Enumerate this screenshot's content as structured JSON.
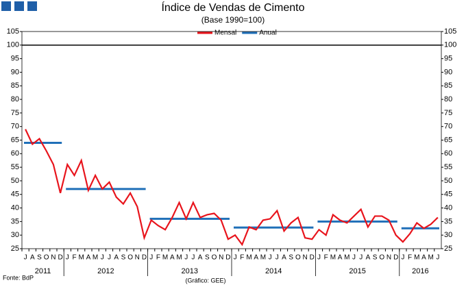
{
  "chart_data": {
    "type": "line",
    "title": "Índice de Vendas de Cimento",
    "subtitle": "(Base 1990=100)",
    "source": "Fonte: BdP",
    "credit": "(Gráfico: GEE)",
    "year_groups": [
      {
        "label": "2011",
        "months": [
          "J",
          "A",
          "S",
          "O",
          "N",
          "D"
        ]
      },
      {
        "label": "2012",
        "months": [
          "J",
          "F",
          "M",
          "A",
          "M",
          "J",
          "J",
          "A",
          "S",
          "O",
          "N",
          "D"
        ]
      },
      {
        "label": "2013",
        "months": [
          "J",
          "F",
          "M",
          "A",
          "M",
          "J",
          "J",
          "A",
          "S",
          "O",
          "N",
          "D"
        ]
      },
      {
        "label": "2014",
        "months": [
          "J",
          "F",
          "M",
          "A",
          "M",
          "J",
          "J",
          "A",
          "S",
          "O",
          "N",
          "D"
        ]
      },
      {
        "label": "2015",
        "months": [
          "J",
          "F",
          "M",
          "A",
          "M",
          "J",
          "J",
          "A",
          "S",
          "O",
          "N",
          "D"
        ]
      },
      {
        "label": "2016",
        "months": [
          "J",
          "F",
          "M",
          "A",
          "M",
          "J"
        ]
      }
    ],
    "series": [
      {
        "name": "Mensal",
        "color": "#e8141c",
        "values": [
          69,
          63.5,
          65.5,
          61,
          56,
          45.5,
          56,
          52,
          57.5,
          46.5,
          52,
          47,
          49.5,
          44,
          41.5,
          45.5,
          40.5,
          29,
          35.5,
          33.5,
          32,
          36.5,
          42,
          36,
          42,
          36.5,
          37.5,
          38,
          35.5,
          28.5,
          30,
          26.5,
          33,
          32,
          35.5,
          36,
          39,
          31.5,
          34.5,
          36.5,
          29,
          28.5,
          32,
          30,
          37.5,
          35.5,
          34.5,
          37,
          39.5,
          33,
          37,
          37,
          35.5,
          30,
          27.5,
          30.5,
          34.5,
          32.5,
          34,
          36.5
        ]
      },
      {
        "name": "Anual",
        "color": "#1f6fb8",
        "values": [
          64,
          47,
          36,
          32.8,
          35,
          32.5
        ]
      }
    ],
    "reference_line": 100,
    "ylim": [
      25,
      105
    ],
    "yticks": [
      25,
      30,
      35,
      40,
      45,
      50,
      55,
      60,
      65,
      70,
      75,
      80,
      85,
      90,
      95,
      100,
      105
    ]
  }
}
